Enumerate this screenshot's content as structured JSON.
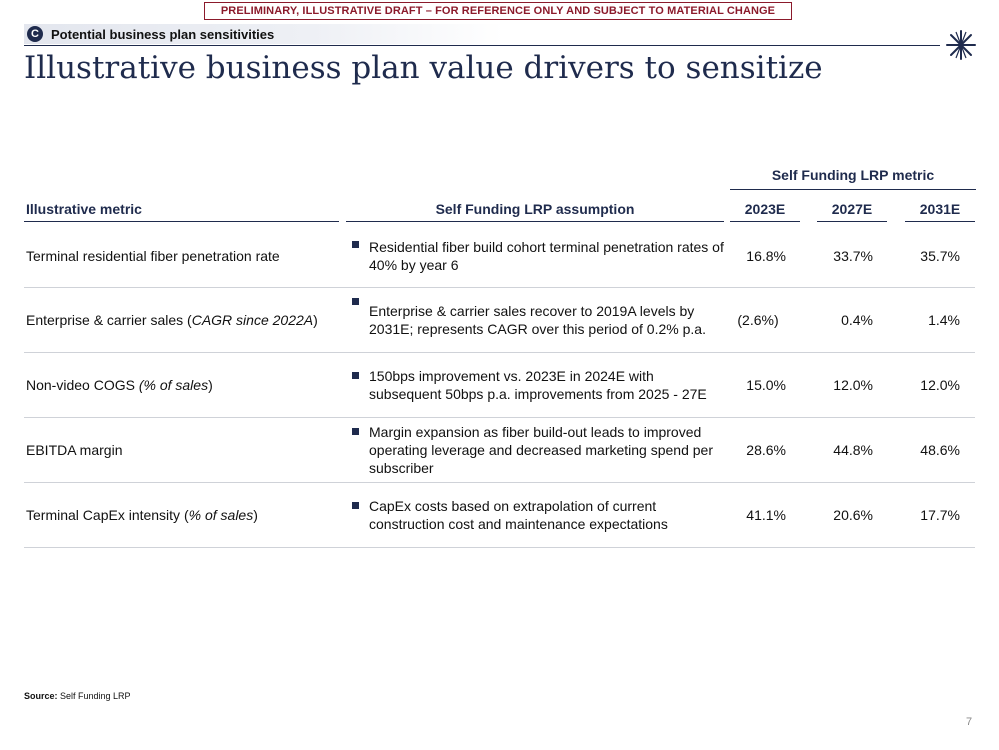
{
  "banner": "PRELIMINARY, ILLUSTRATIVE DRAFT – FOR REFERENCE ONLY AND SUBJECT TO MATERIAL CHANGE",
  "section": {
    "badge": "C",
    "label": "Potential business plan sensitivities"
  },
  "title": "Illustrative business plan value drivers to sensitize",
  "table": {
    "group_header": "Self Funding LRP metric",
    "col_metric": "Illustrative metric",
    "col_assumption": "Self Funding LRP assumption",
    "years": [
      "2023E",
      "2027E",
      "2031E"
    ],
    "rows": [
      {
        "metric": "Terminal residential fiber penetration rate",
        "metric_suffix": "",
        "assumption": "Residential fiber build cohort terminal penetration rates of 40% by year 6",
        "values": [
          "16.8%",
          "33.7%",
          "35.7%"
        ]
      },
      {
        "metric": "Enterprise & carrier sales (",
        "metric_italic": "CAGR since 2022A",
        "metric_close": ")",
        "assumption": "Enterprise & carrier sales recover to 2019A levels by 2031E; represents CAGR over this period of 0.2% p.a.",
        "values": [
          "(2.6%)",
          "0.4%",
          "1.4%"
        ]
      },
      {
        "metric": "Non-video COGS ",
        "metric_italic": "(% of sales",
        "metric_close": ")",
        "assumption": "150bps improvement vs. 2023E in 2024E with subsequent 50bps p.a. improvements from 2025 - 27E",
        "values": [
          "15.0%",
          "12.0%",
          "12.0%"
        ]
      },
      {
        "metric": "EBITDA margin",
        "assumption": "Margin expansion as fiber build-out leads to improved operating leverage and decreased marketing spend per subscriber",
        "values": [
          "28.6%",
          "44.8%",
          "48.6%"
        ]
      },
      {
        "metric": "Terminal CapEx intensity (",
        "metric_italic": "% of sales",
        "metric_close": ")",
        "assumption": "CapEx costs based on extrapolation of current construction cost and maintenance expectations",
        "values": [
          "41.1%",
          "20.6%",
          "17.7%"
        ]
      }
    ]
  },
  "source": {
    "label": "Source:",
    "text": " Self Funding LRP"
  },
  "page_number": "7",
  "colors": {
    "navy": "#1f2b4d",
    "banner_red": "#8b1a2b"
  },
  "icons": {
    "logo": "asterisk-star-logo-icon"
  }
}
